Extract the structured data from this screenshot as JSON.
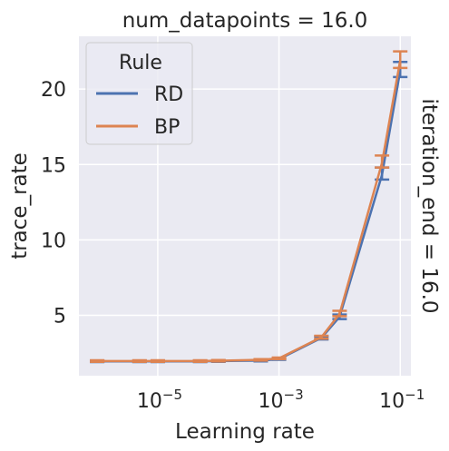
{
  "chart_data": {
    "type": "line",
    "title": "num_datapoints = 16.0",
    "right_label": "iteration_end = 16.0",
    "xlabel": "Learning rate",
    "ylabel": "trace_rate",
    "xscale": "log",
    "xlim": [
      5e-07,
      0.15
    ],
    "ylim": [
      1,
      23.5
    ],
    "xticks": [
      1e-05,
      0.001,
      0.1
    ],
    "xtick_labels": [
      {
        "base": "10",
        "exp": "−5"
      },
      {
        "base": "10",
        "exp": "−3"
      },
      {
        "base": "10",
        "exp": "−1"
      }
    ],
    "yticks": [
      5,
      10,
      15,
      20
    ],
    "ytick_labels": [
      "5",
      "10",
      "15",
      "20"
    ],
    "grid": true,
    "legend": {
      "title": "Rule",
      "position": "top-left"
    },
    "series": [
      {
        "name": "RD",
        "color": "#4c72b0",
        "x": [
          1e-06,
          5e-06,
          1e-05,
          5e-05,
          0.0001,
          0.0005,
          0.001,
          0.005,
          0.01,
          0.05,
          0.1
        ],
        "y": [
          1.95,
          1.95,
          1.95,
          1.95,
          1.97,
          2.0,
          2.1,
          3.5,
          4.9,
          14.3,
          21.2
        ],
        "err_low": [
          1.9,
          1.9,
          1.9,
          1.9,
          1.92,
          1.95,
          2.05,
          3.4,
          4.75,
          14.0,
          20.8
        ],
        "err_high": [
          2.0,
          2.0,
          2.0,
          2.0,
          2.02,
          2.05,
          2.15,
          3.6,
          5.05,
          14.8,
          21.8
        ]
      },
      {
        "name": "BP",
        "color": "#dd8452",
        "x": [
          1e-06,
          5e-06,
          1e-05,
          5e-05,
          0.0001,
          0.0005,
          0.001,
          0.005,
          0.01,
          0.05,
          0.1
        ],
        "y": [
          1.97,
          1.97,
          1.97,
          1.97,
          1.99,
          2.05,
          2.15,
          3.55,
          5.1,
          15.1,
          21.9
        ],
        "err_low": [
          1.92,
          1.92,
          1.92,
          1.92,
          1.94,
          2.0,
          2.1,
          3.45,
          4.95,
          14.8,
          21.4
        ],
        "err_high": [
          2.02,
          2.02,
          2.02,
          2.02,
          2.04,
          2.1,
          2.2,
          3.65,
          5.3,
          15.6,
          22.5
        ]
      }
    ]
  }
}
